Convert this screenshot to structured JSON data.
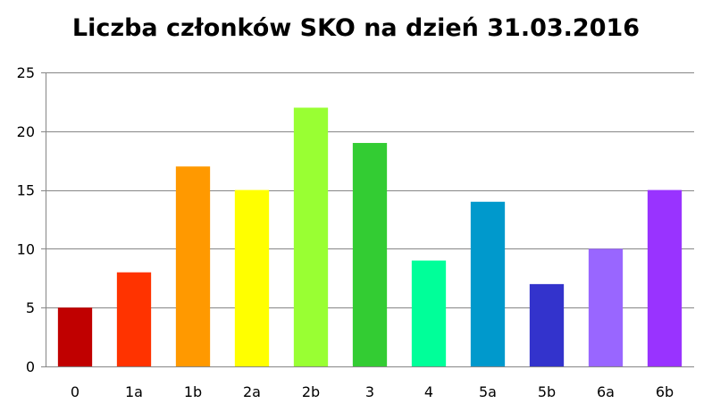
{
  "chart_data": {
    "type": "bar",
    "title": "Liczba członków SKO na dzień 31.03.2016",
    "categories": [
      "0",
      "1a",
      "1b",
      "2a",
      "2b",
      "3",
      "4",
      "5a",
      "5b",
      "6a",
      "6b"
    ],
    "values": [
      5,
      8,
      17,
      15,
      22,
      19,
      9,
      14,
      7,
      10,
      15
    ],
    "colors": [
      "#c00000",
      "#ff3300",
      "#ff9900",
      "#ffff00",
      "#99ff33",
      "#33cc33",
      "#00ff99",
      "#0099cc",
      "#3333cc",
      "#9966ff",
      "#9933ff"
    ],
    "ylim": [
      0,
      25
    ],
    "yticks": [
      0,
      5,
      10,
      15,
      20,
      25
    ],
    "xlabel": "",
    "ylabel": "",
    "grid": true,
    "legend": "none"
  }
}
